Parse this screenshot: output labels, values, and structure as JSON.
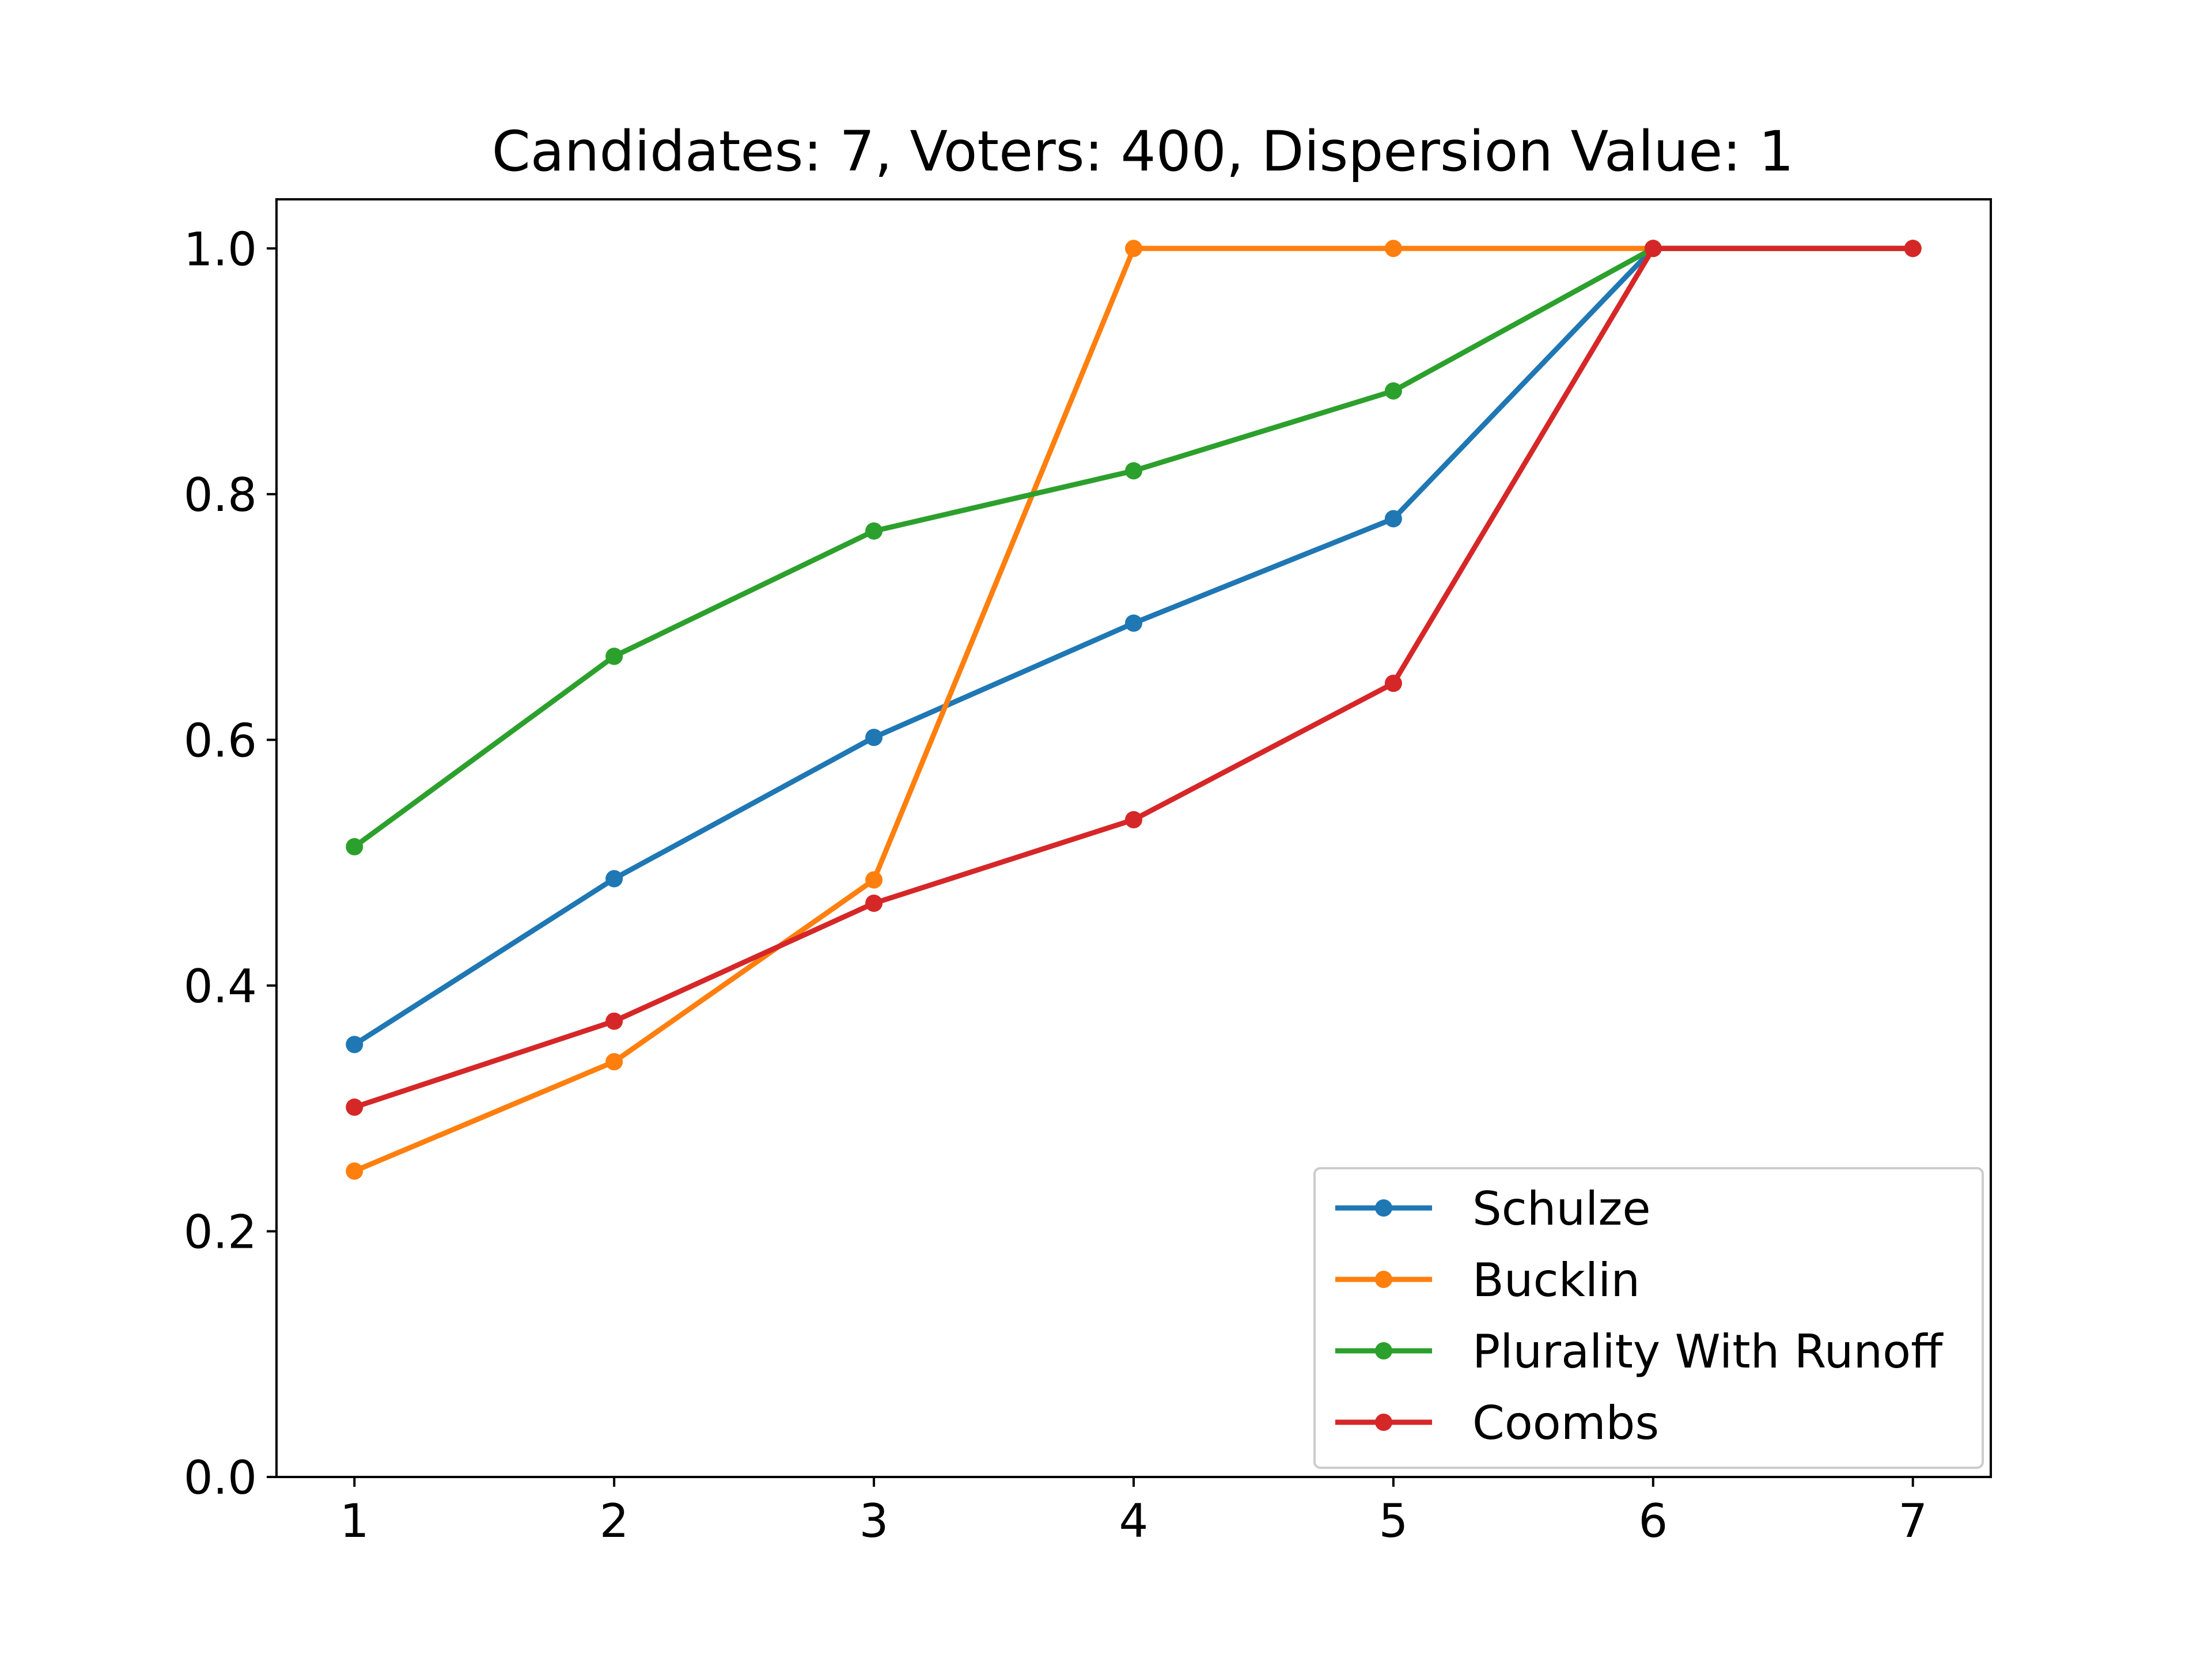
{
  "chart_data": {
    "type": "line",
    "title": "Candidates: 7, Voters: 400, Dispersion Value: 1",
    "xlabel": "",
    "ylabel": "",
    "x": [
      1,
      2,
      3,
      4,
      5,
      6,
      7
    ],
    "xlim": [
      0.7,
      7.3
    ],
    "ylim": [
      0.0,
      1.04
    ],
    "xticks": [
      "1",
      "2",
      "3",
      "4",
      "5",
      "6",
      "7"
    ],
    "yticks": [
      "0.0",
      "0.2",
      "0.4",
      "0.6",
      "0.8",
      "1.0"
    ],
    "grid": false,
    "legend_position": "lower-right",
    "series": [
      {
        "name": "Schulze",
        "color": "#1f77b4",
        "values": [
          0.352,
          0.487,
          0.602,
          0.695,
          0.78,
          1.0,
          1.0
        ]
      },
      {
        "name": "Bucklin",
        "color": "#ff7f0e",
        "values": [
          0.249,
          0.338,
          0.486,
          1.0,
          1.0,
          1.0,
          1.0
        ]
      },
      {
        "name": "Plurality With Runoff",
        "color": "#2ca02c",
        "values": [
          0.513,
          0.668,
          0.77,
          0.819,
          0.884,
          1.0,
          1.0
        ]
      },
      {
        "name": "Coombs",
        "color": "#d62728",
        "values": [
          0.301,
          0.371,
          0.467,
          0.535,
          0.646,
          1.0,
          1.0
        ]
      }
    ]
  }
}
